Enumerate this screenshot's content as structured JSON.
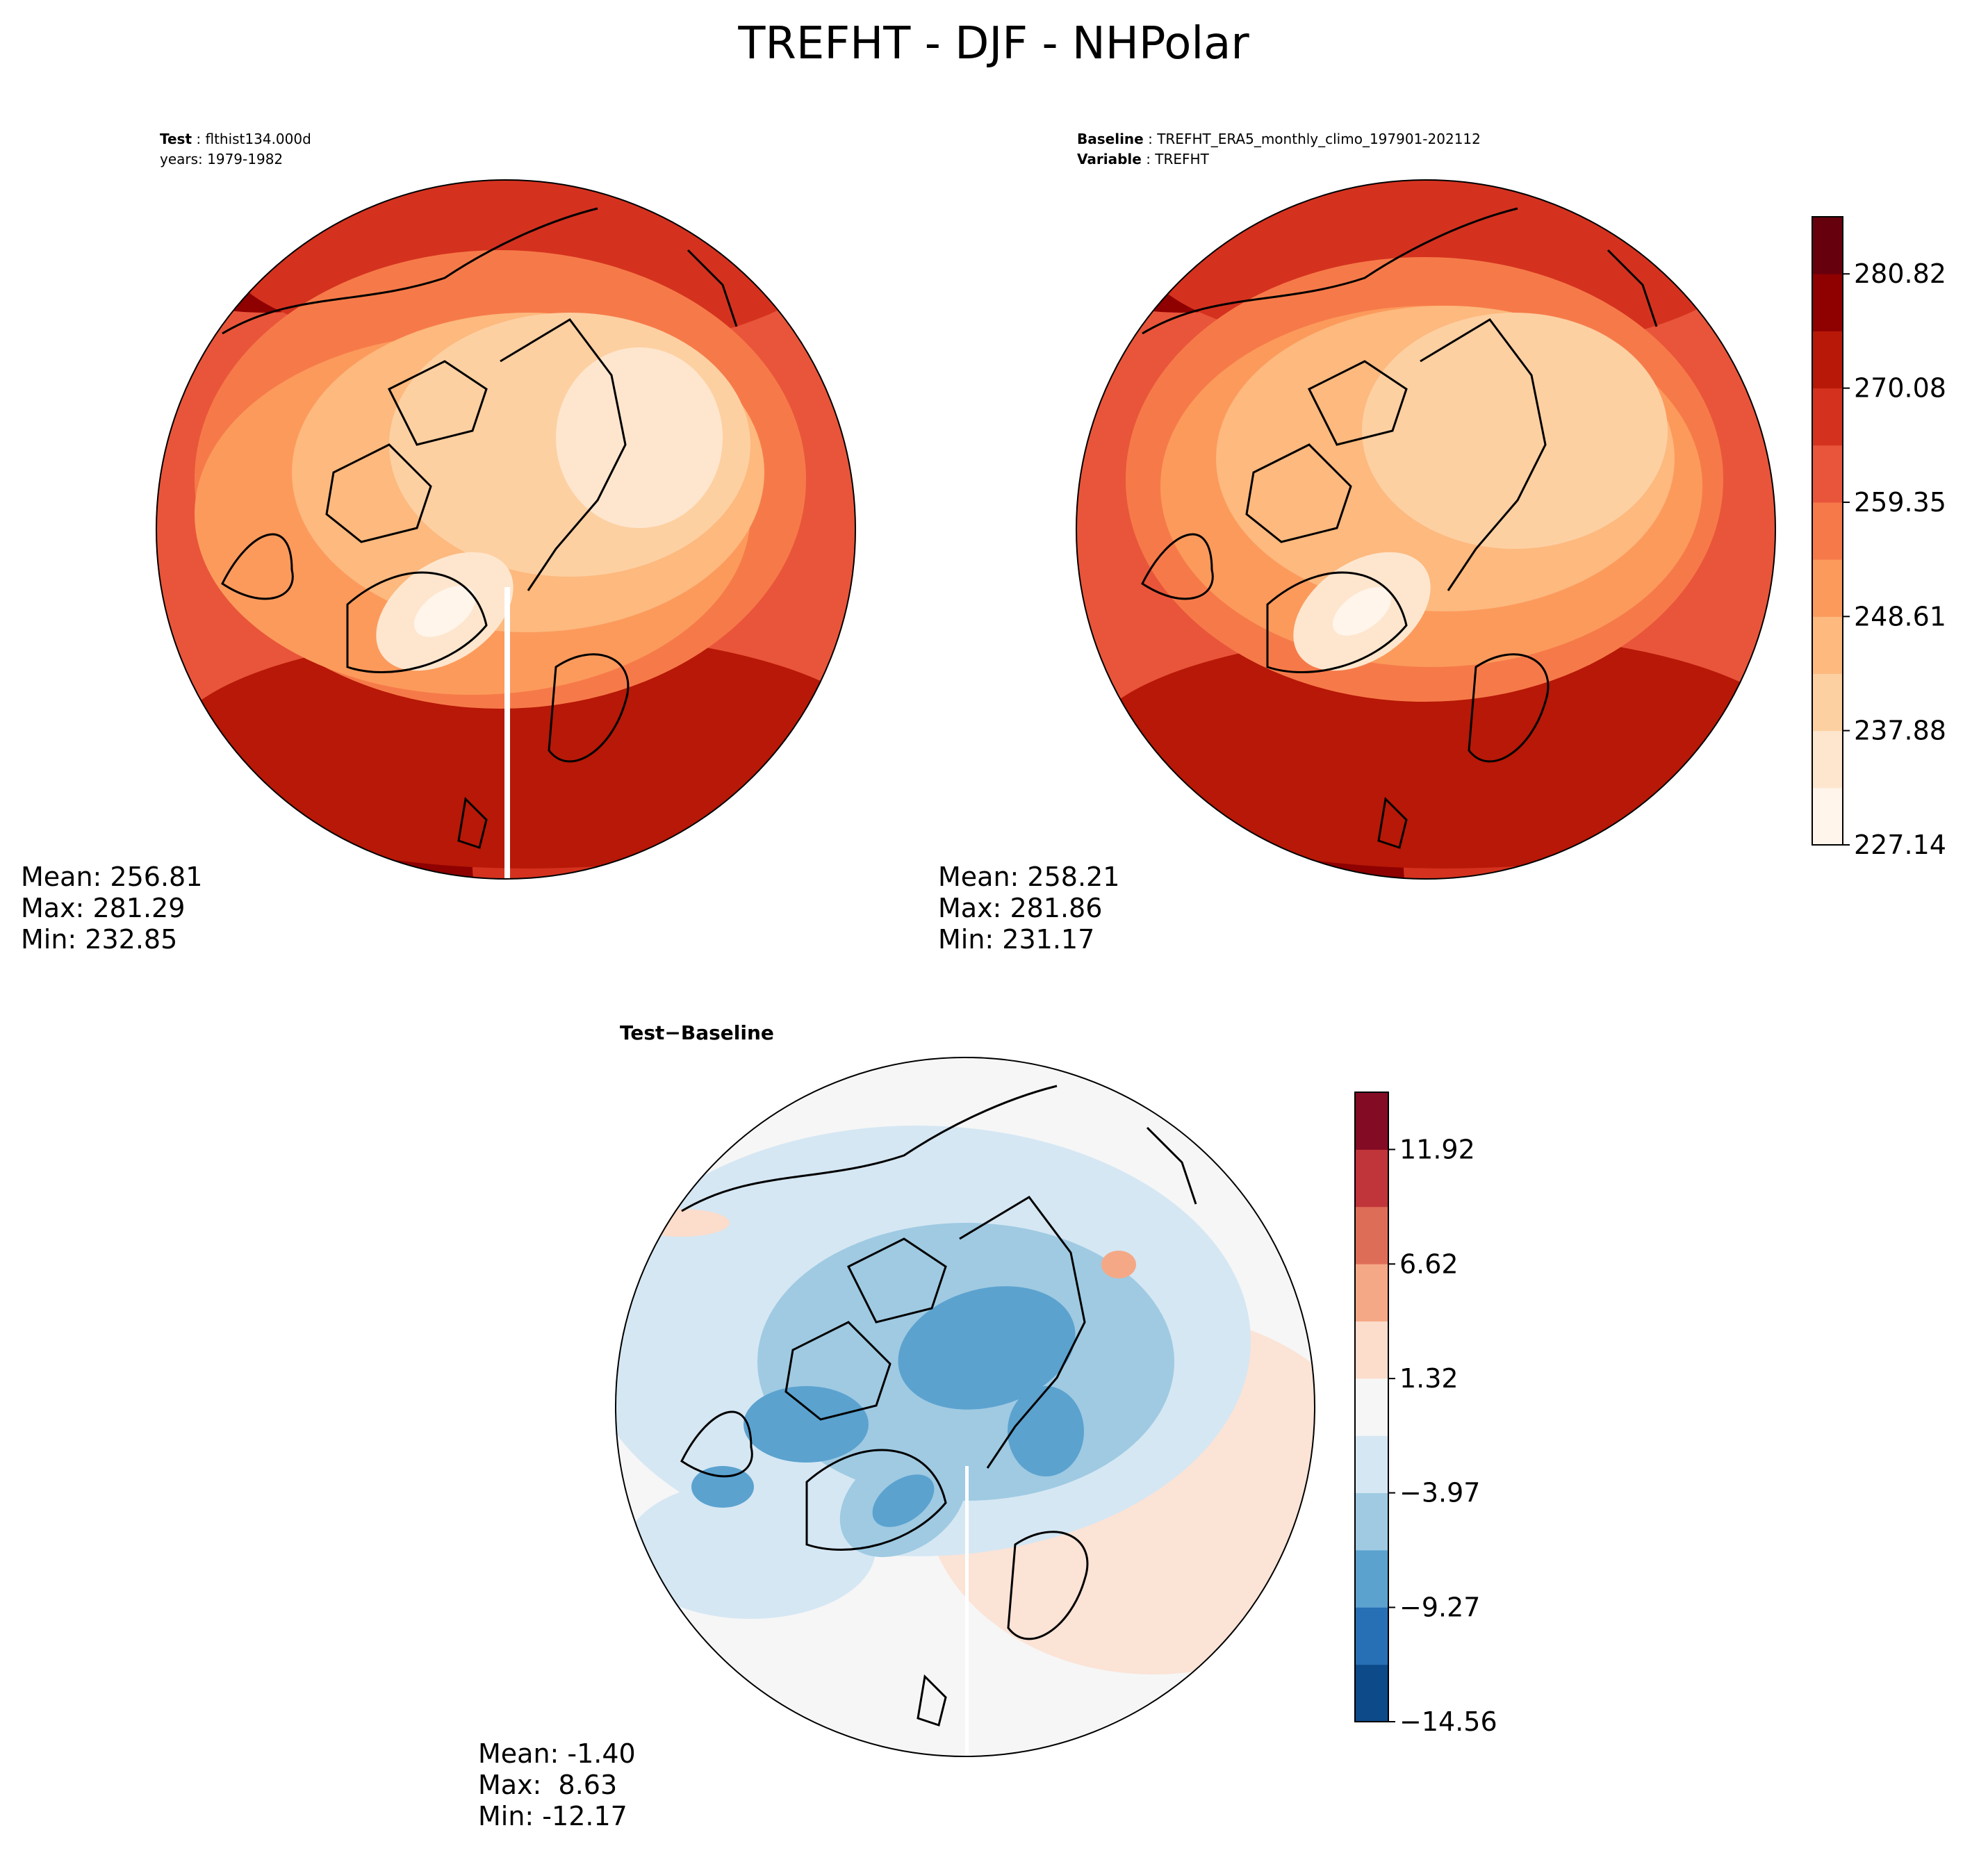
{
  "chart_data": [
    {
      "type": "heatmap",
      "panel": "test",
      "projection": "north-polar-stereographic",
      "title": "TREFHT - DJF - NHPolar",
      "case_label": "Test",
      "case_name": "flthist134.000d",
      "years": "years: 1979-1982",
      "stats": {
        "mean": "Mean: 256.81",
        "max": "Max: 281.29",
        "min": "Min: 232.85"
      },
      "colormap": "OrRd",
      "colorbar_shared": true
    },
    {
      "type": "heatmap",
      "panel": "baseline",
      "projection": "north-polar-stereographic",
      "case_label": "Baseline",
      "case_name": "TREFHT_ERA5_monthly_climo_197901-202112",
      "variable_label": "Variable",
      "variable_name": "TREFHT",
      "stats": {
        "mean": "Mean: 258.21",
        "max": "Max: 281.86",
        "min": "Min: 231.17"
      },
      "colormap": "OrRd",
      "colorbar": {
        "ticks": [
          "227.14",
          "237.88",
          "248.61",
          "259.35",
          "270.08",
          "280.82"
        ],
        "tick_values": [
          227.14,
          237.88,
          248.61,
          259.35,
          270.08,
          280.82
        ],
        "range": [
          227.14,
          286.19
        ],
        "levels": 11,
        "colors": [
          "#fff5eb",
          "#fee6ce",
          "#fdd0a2",
          "#fdb97e",
          "#fc9a5c",
          "#f67a49",
          "#e9553a",
          "#d4321f",
          "#b71807",
          "#8f0001",
          "#67000d"
        ]
      }
    },
    {
      "type": "heatmap",
      "panel": "difference",
      "projection": "north-polar-stereographic",
      "title_left": "Test",
      "title_op": "−",
      "title_right": "Baseline",
      "stats": {
        "mean": "Mean: -1.40",
        "max": "Max:  8.63",
        "min": "Min: -12.17"
      },
      "colormap": "RdBu_r",
      "colorbar": {
        "ticks": [
          "−14.56",
          "−9.27",
          "−3.97",
          "1.32",
          "6.62",
          "11.92"
        ],
        "tick_values": [
          -14.56,
          -9.27,
          -3.97,
          1.32,
          6.62,
          11.92
        ],
        "range": [
          -14.56,
          14.57
        ],
        "levels": 11,
        "colors": [
          "#0d4a8a",
          "#2870b5",
          "#5ba2cf",
          "#9fcae2",
          "#d5e7f3",
          "#f6f6f6",
          "#fcdccb",
          "#f5a886",
          "#de6d57",
          "#c03539",
          "#830b23"
        ]
      }
    }
  ]
}
